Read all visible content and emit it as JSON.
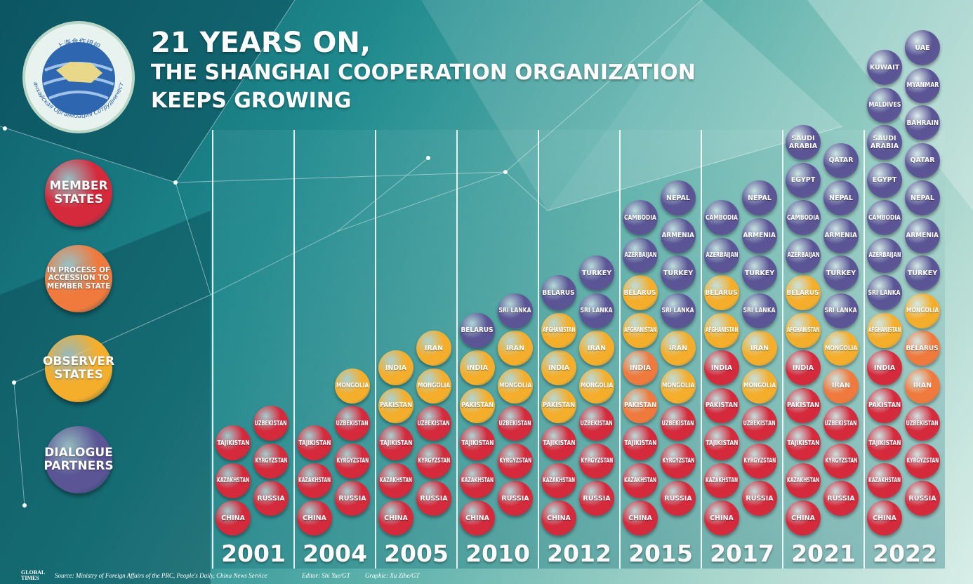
{
  "logo": {
    "chinese": "上海合作组织",
    "russian": "Шанхайская Организация Сотрудничества"
  },
  "title": {
    "line1": "21 YEARS ON,",
    "line2": "THE SHANGHAI COOPERATION ORGANIZATION",
    "line3": "KEEPS GROWING"
  },
  "legend": [
    {
      "status": "member",
      "color": "#d42a3c",
      "lines": [
        "MEMBER",
        "STATES"
      ]
    },
    {
      "status": "accession",
      "color": "#f07a3e",
      "lines": [
        "IN PROCESS OF",
        "ACCESSION TO",
        "MEMBER STATE"
      ]
    },
    {
      "status": "observer",
      "color": "#f5ae2c",
      "lines": [
        "OBSERVER",
        "STATES"
      ]
    },
    {
      "status": "dialogue",
      "color": "#5b5596",
      "lines": [
        "DIALOGUE",
        "PARTNERS"
      ]
    }
  ],
  "columns": [
    {
      "year": "2001",
      "left": [
        {
          "name": "CHINA",
          "status": "member"
        },
        {
          "name": "KAZAKHSTAN",
          "status": "member"
        },
        {
          "name": "TAJIKISTAN",
          "status": "member"
        }
      ],
      "right": [
        {
          "name": "RUSSIA",
          "status": "member"
        },
        {
          "name": "KYRGYZSTAN",
          "status": "member"
        },
        {
          "name": "UZBEKISTAN",
          "status": "member"
        }
      ]
    },
    {
      "year": "2004",
      "left": [
        {
          "name": "CHINA",
          "status": "member"
        },
        {
          "name": "KAZAKHSTAN",
          "status": "member"
        },
        {
          "name": "TAJIKISTAN",
          "status": "member"
        }
      ],
      "right": [
        {
          "name": "RUSSIA",
          "status": "member"
        },
        {
          "name": "KYRGYZSTAN",
          "status": "member"
        },
        {
          "name": "UZBEKISTAN",
          "status": "member"
        },
        {
          "name": "MONGOLIA",
          "status": "observer"
        }
      ]
    },
    {
      "year": "2005",
      "left": [
        {
          "name": "CHINA",
          "status": "member"
        },
        {
          "name": "KAZAKHSTAN",
          "status": "member"
        },
        {
          "name": "TAJIKISTAN",
          "status": "member"
        },
        {
          "name": "PAKISTAN",
          "status": "observer"
        },
        {
          "name": "INDIA",
          "status": "observer"
        }
      ],
      "right": [
        {
          "name": "RUSSIA",
          "status": "member"
        },
        {
          "name": "KYRGYZSTAN",
          "status": "member"
        },
        {
          "name": "UZBEKISTAN",
          "status": "member"
        },
        {
          "name": "MONGOLIA",
          "status": "observer"
        },
        {
          "name": "IRAN",
          "status": "observer"
        }
      ]
    },
    {
      "year": "2010",
      "left": [
        {
          "name": "CHINA",
          "status": "member"
        },
        {
          "name": "KAZAKHSTAN",
          "status": "member"
        },
        {
          "name": "TAJIKISTAN",
          "status": "member"
        },
        {
          "name": "PAKISTAN",
          "status": "observer"
        },
        {
          "name": "INDIA",
          "status": "observer"
        },
        {
          "name": "BELARUS",
          "status": "dialogue"
        }
      ],
      "right": [
        {
          "name": "RUSSIA",
          "status": "member"
        },
        {
          "name": "KYRGYZSTAN",
          "status": "member"
        },
        {
          "name": "UZBEKISTAN",
          "status": "member"
        },
        {
          "name": "MONGOLIA",
          "status": "observer"
        },
        {
          "name": "IRAN",
          "status": "observer"
        },
        {
          "name": "SRI LANKA",
          "status": "dialogue"
        }
      ]
    },
    {
      "year": "2012",
      "left": [
        {
          "name": "CHINA",
          "status": "member"
        },
        {
          "name": "KAZAKHSTAN",
          "status": "member"
        },
        {
          "name": "TAJIKISTAN",
          "status": "member"
        },
        {
          "name": "PAKISTAN",
          "status": "observer"
        },
        {
          "name": "INDIA",
          "status": "observer"
        },
        {
          "name": "AFGHANISTAN",
          "status": "observer"
        },
        {
          "name": "BELARUS",
          "status": "dialogue"
        }
      ],
      "right": [
        {
          "name": "RUSSIA",
          "status": "member"
        },
        {
          "name": "KYRGYZSTAN",
          "status": "member"
        },
        {
          "name": "UZBEKISTAN",
          "status": "member"
        },
        {
          "name": "MONGOLIA",
          "status": "observer"
        },
        {
          "name": "IRAN",
          "status": "observer"
        },
        {
          "name": "SRI LANKA",
          "status": "dialogue"
        },
        {
          "name": "TURKEY",
          "status": "dialogue"
        }
      ]
    },
    {
      "year": "2015",
      "left": [
        {
          "name": "CHINA",
          "status": "member"
        },
        {
          "name": "KAZAKHSTAN",
          "status": "member"
        },
        {
          "name": "TAJIKISTAN",
          "status": "member"
        },
        {
          "name": "PAKISTAN",
          "status": "accession"
        },
        {
          "name": "INDIA",
          "status": "accession"
        },
        {
          "name": "AFGHANISTAN",
          "status": "observer"
        },
        {
          "name": "BELARUS",
          "status": "observer"
        },
        {
          "name": "AZERBAIJAN",
          "status": "dialogue"
        },
        {
          "name": "CAMBODIA",
          "status": "dialogue"
        }
      ],
      "right": [
        {
          "name": "RUSSIA",
          "status": "member"
        },
        {
          "name": "KYRGYZSTAN",
          "status": "member"
        },
        {
          "name": "UZBEKISTAN",
          "status": "member"
        },
        {
          "name": "MONGOLIA",
          "status": "observer"
        },
        {
          "name": "IRAN",
          "status": "observer"
        },
        {
          "name": "SRI LANKA",
          "status": "dialogue"
        },
        {
          "name": "TURKEY",
          "status": "dialogue"
        },
        {
          "name": "ARMENIA",
          "status": "dialogue"
        },
        {
          "name": "NEPAL",
          "status": "dialogue"
        }
      ]
    },
    {
      "year": "2017",
      "left": [
        {
          "name": "CHINA",
          "status": "member"
        },
        {
          "name": "KAZAKHSTAN",
          "status": "member"
        },
        {
          "name": "TAJIKISTAN",
          "status": "member"
        },
        {
          "name": "PAKISTAN",
          "status": "member"
        },
        {
          "name": "INDIA",
          "status": "member"
        },
        {
          "name": "AFGHANISTAN",
          "status": "observer"
        },
        {
          "name": "BELARUS",
          "status": "observer"
        },
        {
          "name": "AZERBAIJAN",
          "status": "dialogue"
        },
        {
          "name": "CAMBODIA",
          "status": "dialogue"
        }
      ],
      "right": [
        {
          "name": "RUSSIA",
          "status": "member"
        },
        {
          "name": "KYRGYZSTAN",
          "status": "member"
        },
        {
          "name": "UZBEKISTAN",
          "status": "member"
        },
        {
          "name": "MONGOLIA",
          "status": "observer"
        },
        {
          "name": "IRAN",
          "status": "observer"
        },
        {
          "name": "SRI LANKA",
          "status": "dialogue"
        },
        {
          "name": "TURKEY",
          "status": "dialogue"
        },
        {
          "name": "ARMENIA",
          "status": "dialogue"
        },
        {
          "name": "NEPAL",
          "status": "dialogue"
        }
      ]
    },
    {
      "year": "2021",
      "left": [
        {
          "name": "CHINA",
          "status": "member"
        },
        {
          "name": "KAZAKHSTAN",
          "status": "member"
        },
        {
          "name": "TAJIKISTAN",
          "status": "member"
        },
        {
          "name": "PAKISTAN",
          "status": "member"
        },
        {
          "name": "INDIA",
          "status": "member"
        },
        {
          "name": "AFGHANISTAN",
          "status": "observer"
        },
        {
          "name": "BELARUS",
          "status": "observer"
        },
        {
          "name": "AZERBAIJAN",
          "status": "dialogue"
        },
        {
          "name": "CAMBODIA",
          "status": "dialogue"
        },
        {
          "name": "EGYPT",
          "status": "dialogue"
        },
        {
          "name": [
            "SAUDI",
            "ARABIA"
          ],
          "status": "dialogue"
        }
      ],
      "right": [
        {
          "name": "RUSSIA",
          "status": "member"
        },
        {
          "name": "KYRGYZSTAN",
          "status": "member"
        },
        {
          "name": "UZBEKISTAN",
          "status": "member"
        },
        {
          "name": "IRAN",
          "status": "accession"
        },
        {
          "name": "MONGOLIA",
          "status": "observer"
        },
        {
          "name": "SRI LANKA",
          "status": "dialogue"
        },
        {
          "name": "TURKEY",
          "status": "dialogue"
        },
        {
          "name": "ARMENIA",
          "status": "dialogue"
        },
        {
          "name": "NEPAL",
          "status": "dialogue"
        },
        {
          "name": "QATAR",
          "status": "dialogue"
        }
      ]
    },
    {
      "year": "2022",
      "left": [
        {
          "name": "CHINA",
          "status": "member"
        },
        {
          "name": "KAZAKHSTAN",
          "status": "member"
        },
        {
          "name": "TAJIKISTAN",
          "status": "member"
        },
        {
          "name": "PAKISTAN",
          "status": "member"
        },
        {
          "name": "INDIA",
          "status": "member"
        },
        {
          "name": "AFGHANISTAN",
          "status": "observer"
        },
        {
          "name": "SRI LANKA",
          "status": "dialogue"
        },
        {
          "name": "AZERBAIJAN",
          "status": "dialogue"
        },
        {
          "name": "CAMBODIA",
          "status": "dialogue"
        },
        {
          "name": "EGYPT",
          "status": "dialogue"
        },
        {
          "name": [
            "SAUDI",
            "ARABIA"
          ],
          "status": "dialogue"
        },
        {
          "name": "MALDIVES",
          "status": "dialogue"
        },
        {
          "name": "KUWAIT",
          "status": "dialogue"
        }
      ],
      "right": [
        {
          "name": "RUSSIA",
          "status": "member"
        },
        {
          "name": "KYRGYZSTAN",
          "status": "member"
        },
        {
          "name": "UZBEKISTAN",
          "status": "member"
        },
        {
          "name": "IRAN",
          "status": "accession"
        },
        {
          "name": "BELARUS",
          "status": "accession"
        },
        {
          "name": "MONGOLIA",
          "status": "observer"
        },
        {
          "name": "TURKEY",
          "status": "dialogue"
        },
        {
          "name": "ARMENIA",
          "status": "dialogue"
        },
        {
          "name": "NEPAL",
          "status": "dialogue"
        },
        {
          "name": "QATAR",
          "status": "dialogue"
        },
        {
          "name": "BAHRAIN",
          "status": "dialogue"
        },
        {
          "name": "MYANMAR",
          "status": "dialogue"
        },
        {
          "name": "UAE",
          "status": "dialogue"
        }
      ]
    }
  ],
  "footer": {
    "brand": "GLOBAL TIMES",
    "source": "Source: Ministry of Foreign Affairs of the PRC, People's Daily, China News Service",
    "editor": "Editor: Shi Yue/GT",
    "graphic": "Graphic: Xu Zihe/GT"
  }
}
